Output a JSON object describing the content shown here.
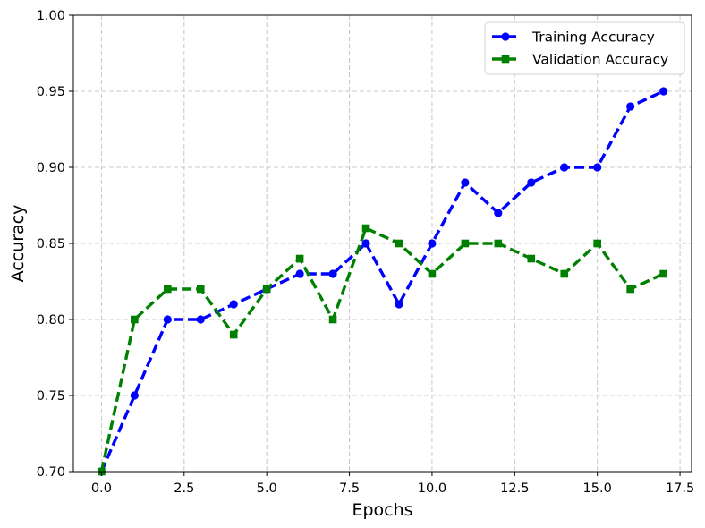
{
  "chart_data": {
    "type": "line",
    "xlabel": "Epochs",
    "ylabel": "Accuracy",
    "xlim": [
      -0.85,
      17.85
    ],
    "ylim": [
      0.7,
      1.0
    ],
    "xticks": [
      0.0,
      2.5,
      5.0,
      7.5,
      10.0,
      12.5,
      15.0,
      17.5
    ],
    "xtick_labels": [
      "0.0",
      "2.5",
      "5.0",
      "7.5",
      "10.0",
      "12.5",
      "15.0",
      "17.5"
    ],
    "yticks": [
      0.7,
      0.75,
      0.8,
      0.85,
      0.9,
      0.95,
      1.0
    ],
    "ytick_labels": [
      "0.70",
      "0.75",
      "0.80",
      "0.85",
      "0.90",
      "0.95",
      "1.00"
    ],
    "grid": true,
    "legend_position": "top-right",
    "x": [
      0,
      1,
      2,
      3,
      4,
      5,
      6,
      7,
      8,
      9,
      10,
      11,
      12,
      13,
      14,
      15,
      16,
      17
    ],
    "series": [
      {
        "name": "Training Accuracy",
        "color": "#0000ff",
        "marker": "circle",
        "linestyle": "dashed",
        "values": [
          0.7,
          0.75,
          0.8,
          0.8,
          0.81,
          0.82,
          0.83,
          0.83,
          0.85,
          0.81,
          0.85,
          0.89,
          0.87,
          0.89,
          0.9,
          0.9,
          0.94,
          0.95
        ]
      },
      {
        "name": "Validation Accuracy",
        "color": "#008000",
        "marker": "square",
        "linestyle": "dashed",
        "values": [
          0.7,
          0.8,
          0.82,
          0.82,
          0.79,
          0.82,
          0.84,
          0.8,
          0.86,
          0.85,
          0.83,
          0.85,
          0.85,
          0.84,
          0.83,
          0.85,
          0.82,
          0.83
        ]
      }
    ]
  }
}
